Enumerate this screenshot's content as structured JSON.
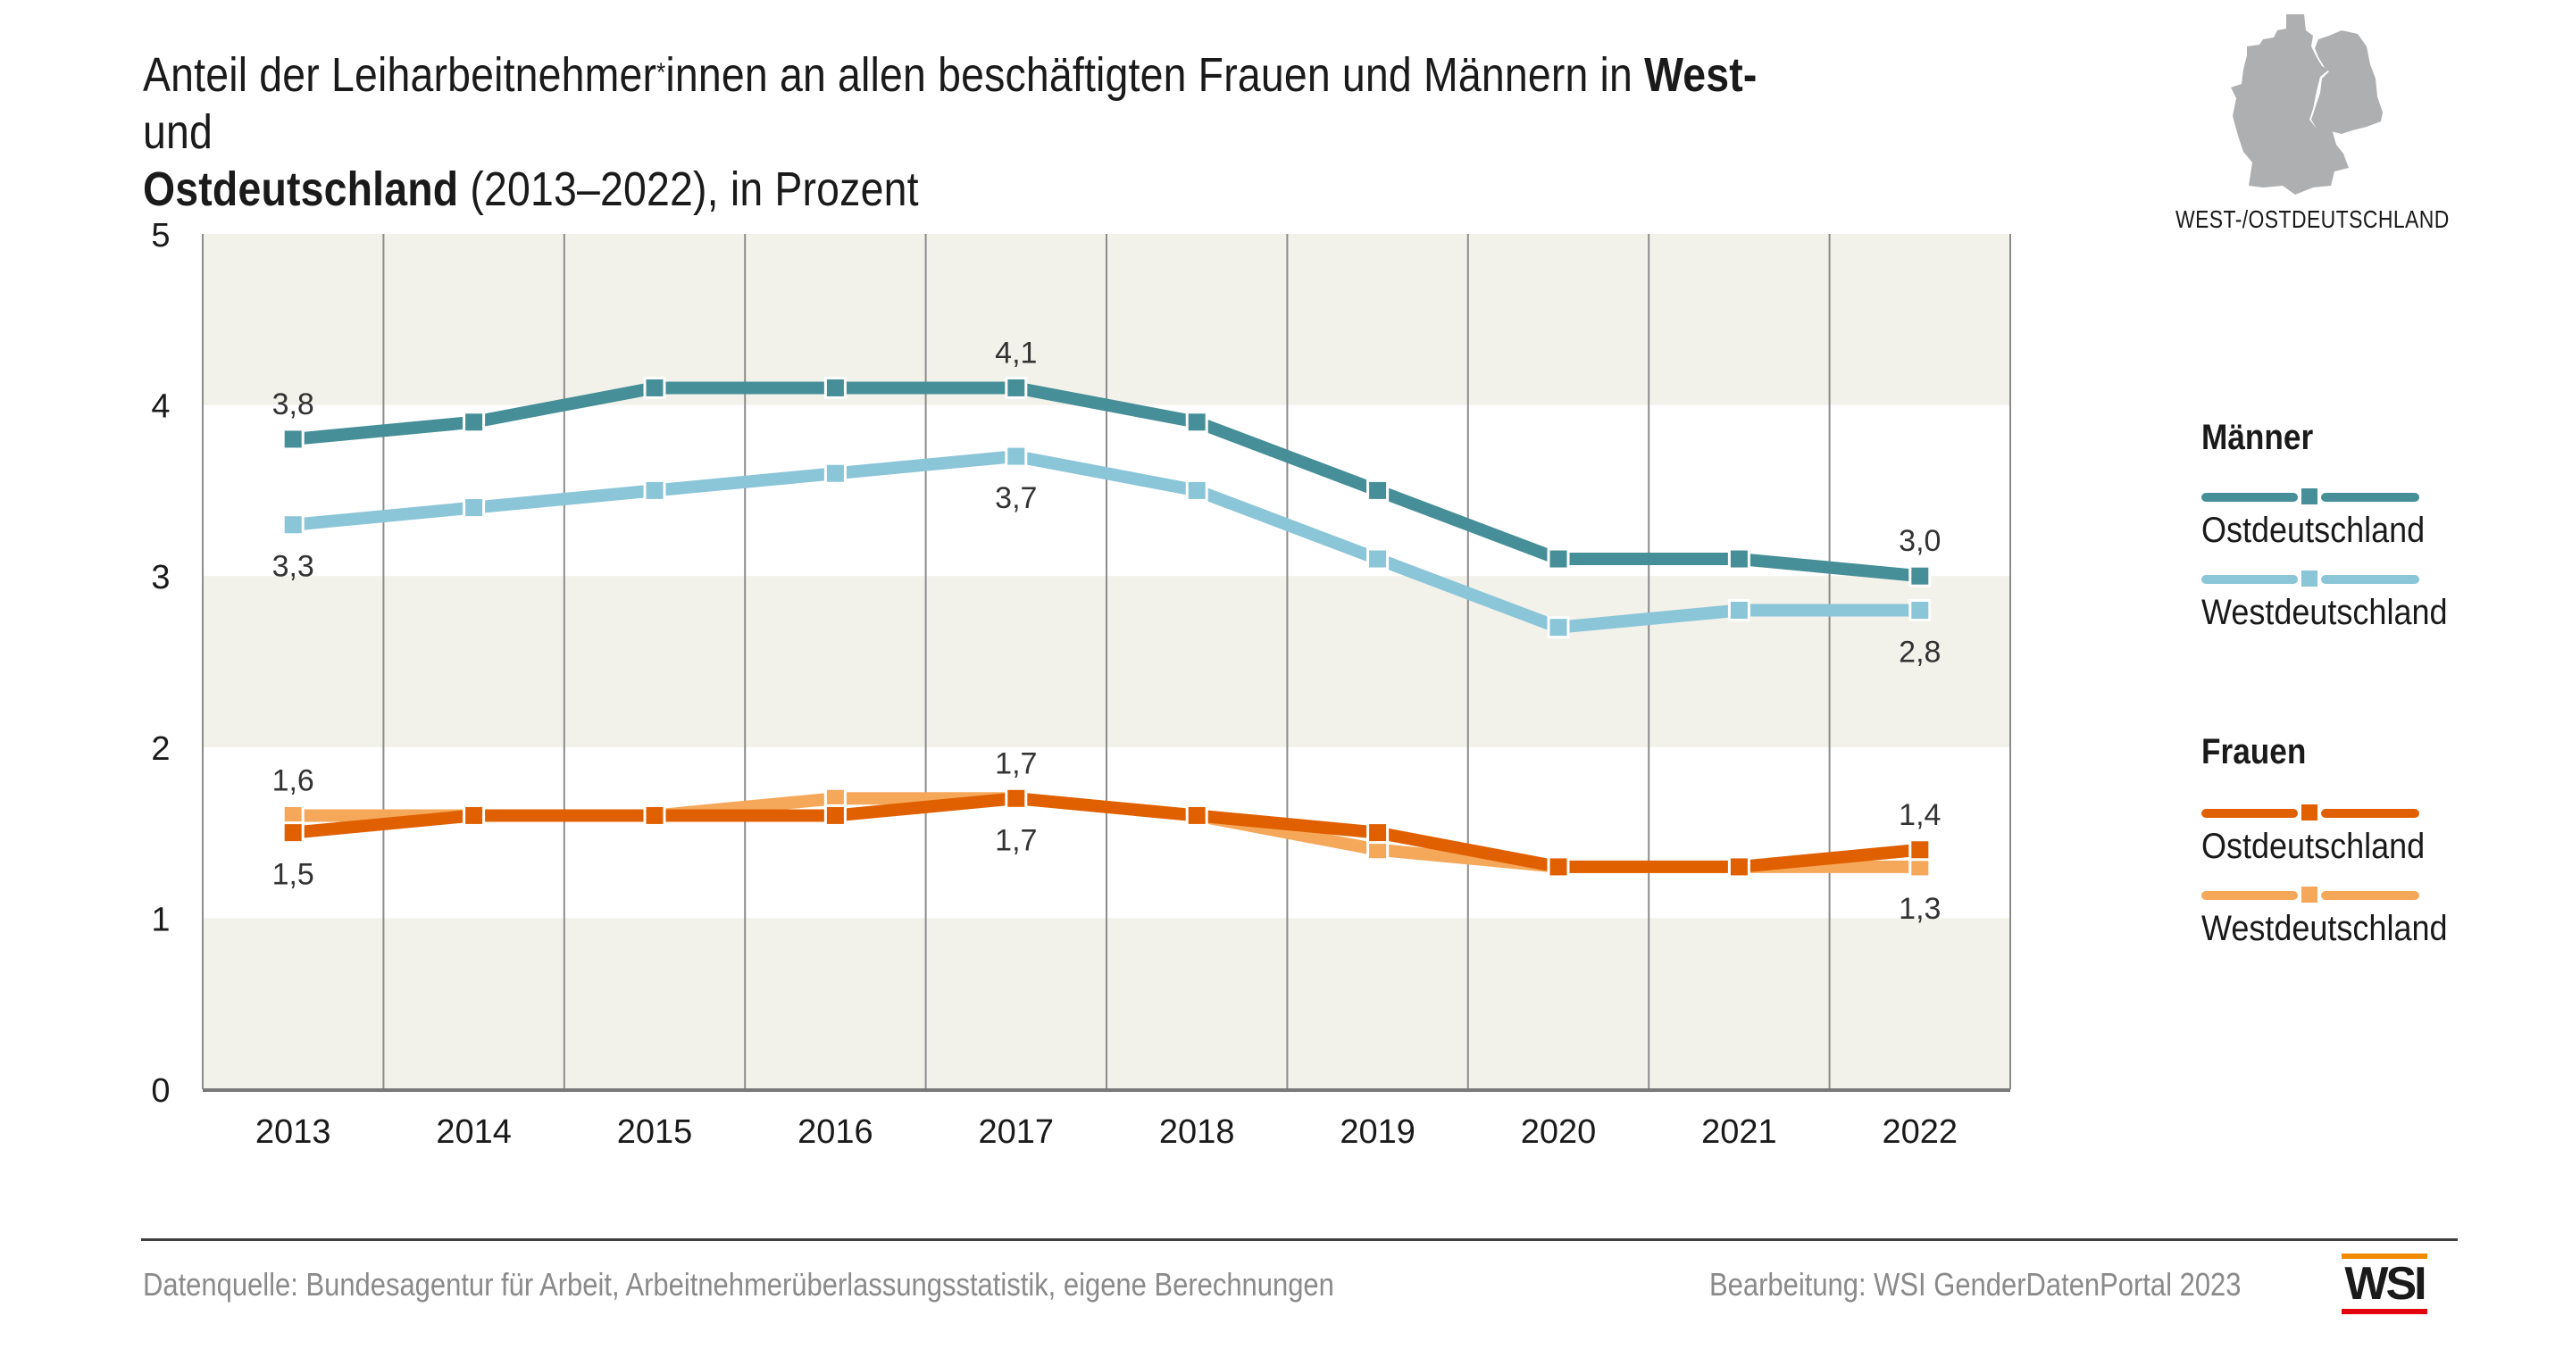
{
  "title": {
    "line1_prefix": "Anteil der Leiharbeitnehmer",
    "line1_sup": "*",
    "line1_mid": "innen an allen beschäftigten Frauen und Männern in ",
    "line1_bold": "West-",
    "line1_suffix": " und",
    "line2_bold": "Ostdeutschland",
    "line2_suffix": " (2013–2022), in Prozent"
  },
  "map": {
    "icon": "germany-map-icon",
    "label": "WEST-/OSTDEUTSCHLAND"
  },
  "legend": {
    "groups": [
      {
        "heading": "Männer",
        "items": [
          {
            "label": "Ostdeutschland",
            "color": "#468F98"
          },
          {
            "label": "Westdeutschland",
            "color": "#8AC5D8"
          }
        ]
      },
      {
        "heading": "Frauen",
        "items": [
          {
            "label": "Ostdeutschland",
            "color": "#E06000"
          },
          {
            "label": "Westdeutschland",
            "color": "#F5A85A"
          }
        ]
      }
    ]
  },
  "footer": {
    "source": "Datenquelle: Bundesagentur für Arbeit, Arbeitnehmerüberlassungsstatistik, eigene Berechnungen",
    "credit": "Bearbeitung: WSI GenderDatenPortal 2023",
    "logo_text": "WSI",
    "logo_colors": {
      "top": "#F08A00",
      "bottom": "#E3000F"
    }
  },
  "chart_data": {
    "type": "line",
    "title": "Anteil der Leiharbeitnehmer*innen an allen beschäftigten Frauen und Männern in West- und Ostdeutschland (2013–2022), in Prozent",
    "xlabel": "",
    "ylabel": "",
    "ylim": [
      0,
      5
    ],
    "yticks": [
      "0",
      "1",
      "2",
      "3",
      "4",
      "5"
    ],
    "x": [
      "2013",
      "2014",
      "2015",
      "2016",
      "2017",
      "2018",
      "2019",
      "2020",
      "2021",
      "2022"
    ],
    "grid": "vertical lines between years, alternating horizontal bands",
    "band_color": "#F2F1EA",
    "legend_position": "right",
    "series": [
      {
        "name": "Männer Ostdeutschland",
        "color": "#468F98",
        "values": [
          3.8,
          3.9,
          4.1,
          4.1,
          4.1,
          3.9,
          3.5,
          3.1,
          3.1,
          3.0
        ],
        "labels": [
          {
            "index": 0,
            "text": "3,8",
            "pos": "above"
          },
          {
            "index": 4,
            "text": "4,1",
            "pos": "above"
          },
          {
            "index": 9,
            "text": "3,0",
            "pos": "above"
          }
        ]
      },
      {
        "name": "Männer Westdeutschland",
        "color": "#8AC5D8",
        "values": [
          3.3,
          3.4,
          3.5,
          3.6,
          3.7,
          3.5,
          3.1,
          2.7,
          2.8,
          2.8
        ],
        "labels": [
          {
            "index": 0,
            "text": "3,3",
            "pos": "below"
          },
          {
            "index": 4,
            "text": "3,7",
            "pos": "below"
          },
          {
            "index": 9,
            "text": "2,8",
            "pos": "below"
          }
        ]
      },
      {
        "name": "Frauen Westdeutschland",
        "color": "#F5A85A",
        "values": [
          1.6,
          1.6,
          1.6,
          1.7,
          1.7,
          1.6,
          1.4,
          1.3,
          1.3,
          1.3
        ],
        "labels": [
          {
            "index": 0,
            "text": "1,6",
            "pos": "above"
          },
          {
            "index": 4,
            "text": "1,7",
            "pos": "below"
          },
          {
            "index": 9,
            "text": "1,3",
            "pos": "below"
          }
        ]
      },
      {
        "name": "Frauen Ostdeutschland",
        "color": "#E06000",
        "values": [
          1.5,
          1.6,
          1.6,
          1.6,
          1.7,
          1.6,
          1.5,
          1.3,
          1.3,
          1.4
        ],
        "labels": [
          {
            "index": 0,
            "text": "1,5",
            "pos": "below"
          },
          {
            "index": 4,
            "text": "1,7",
            "pos": "above"
          },
          {
            "index": 9,
            "text": "1,4",
            "pos": "above"
          }
        ]
      }
    ]
  }
}
